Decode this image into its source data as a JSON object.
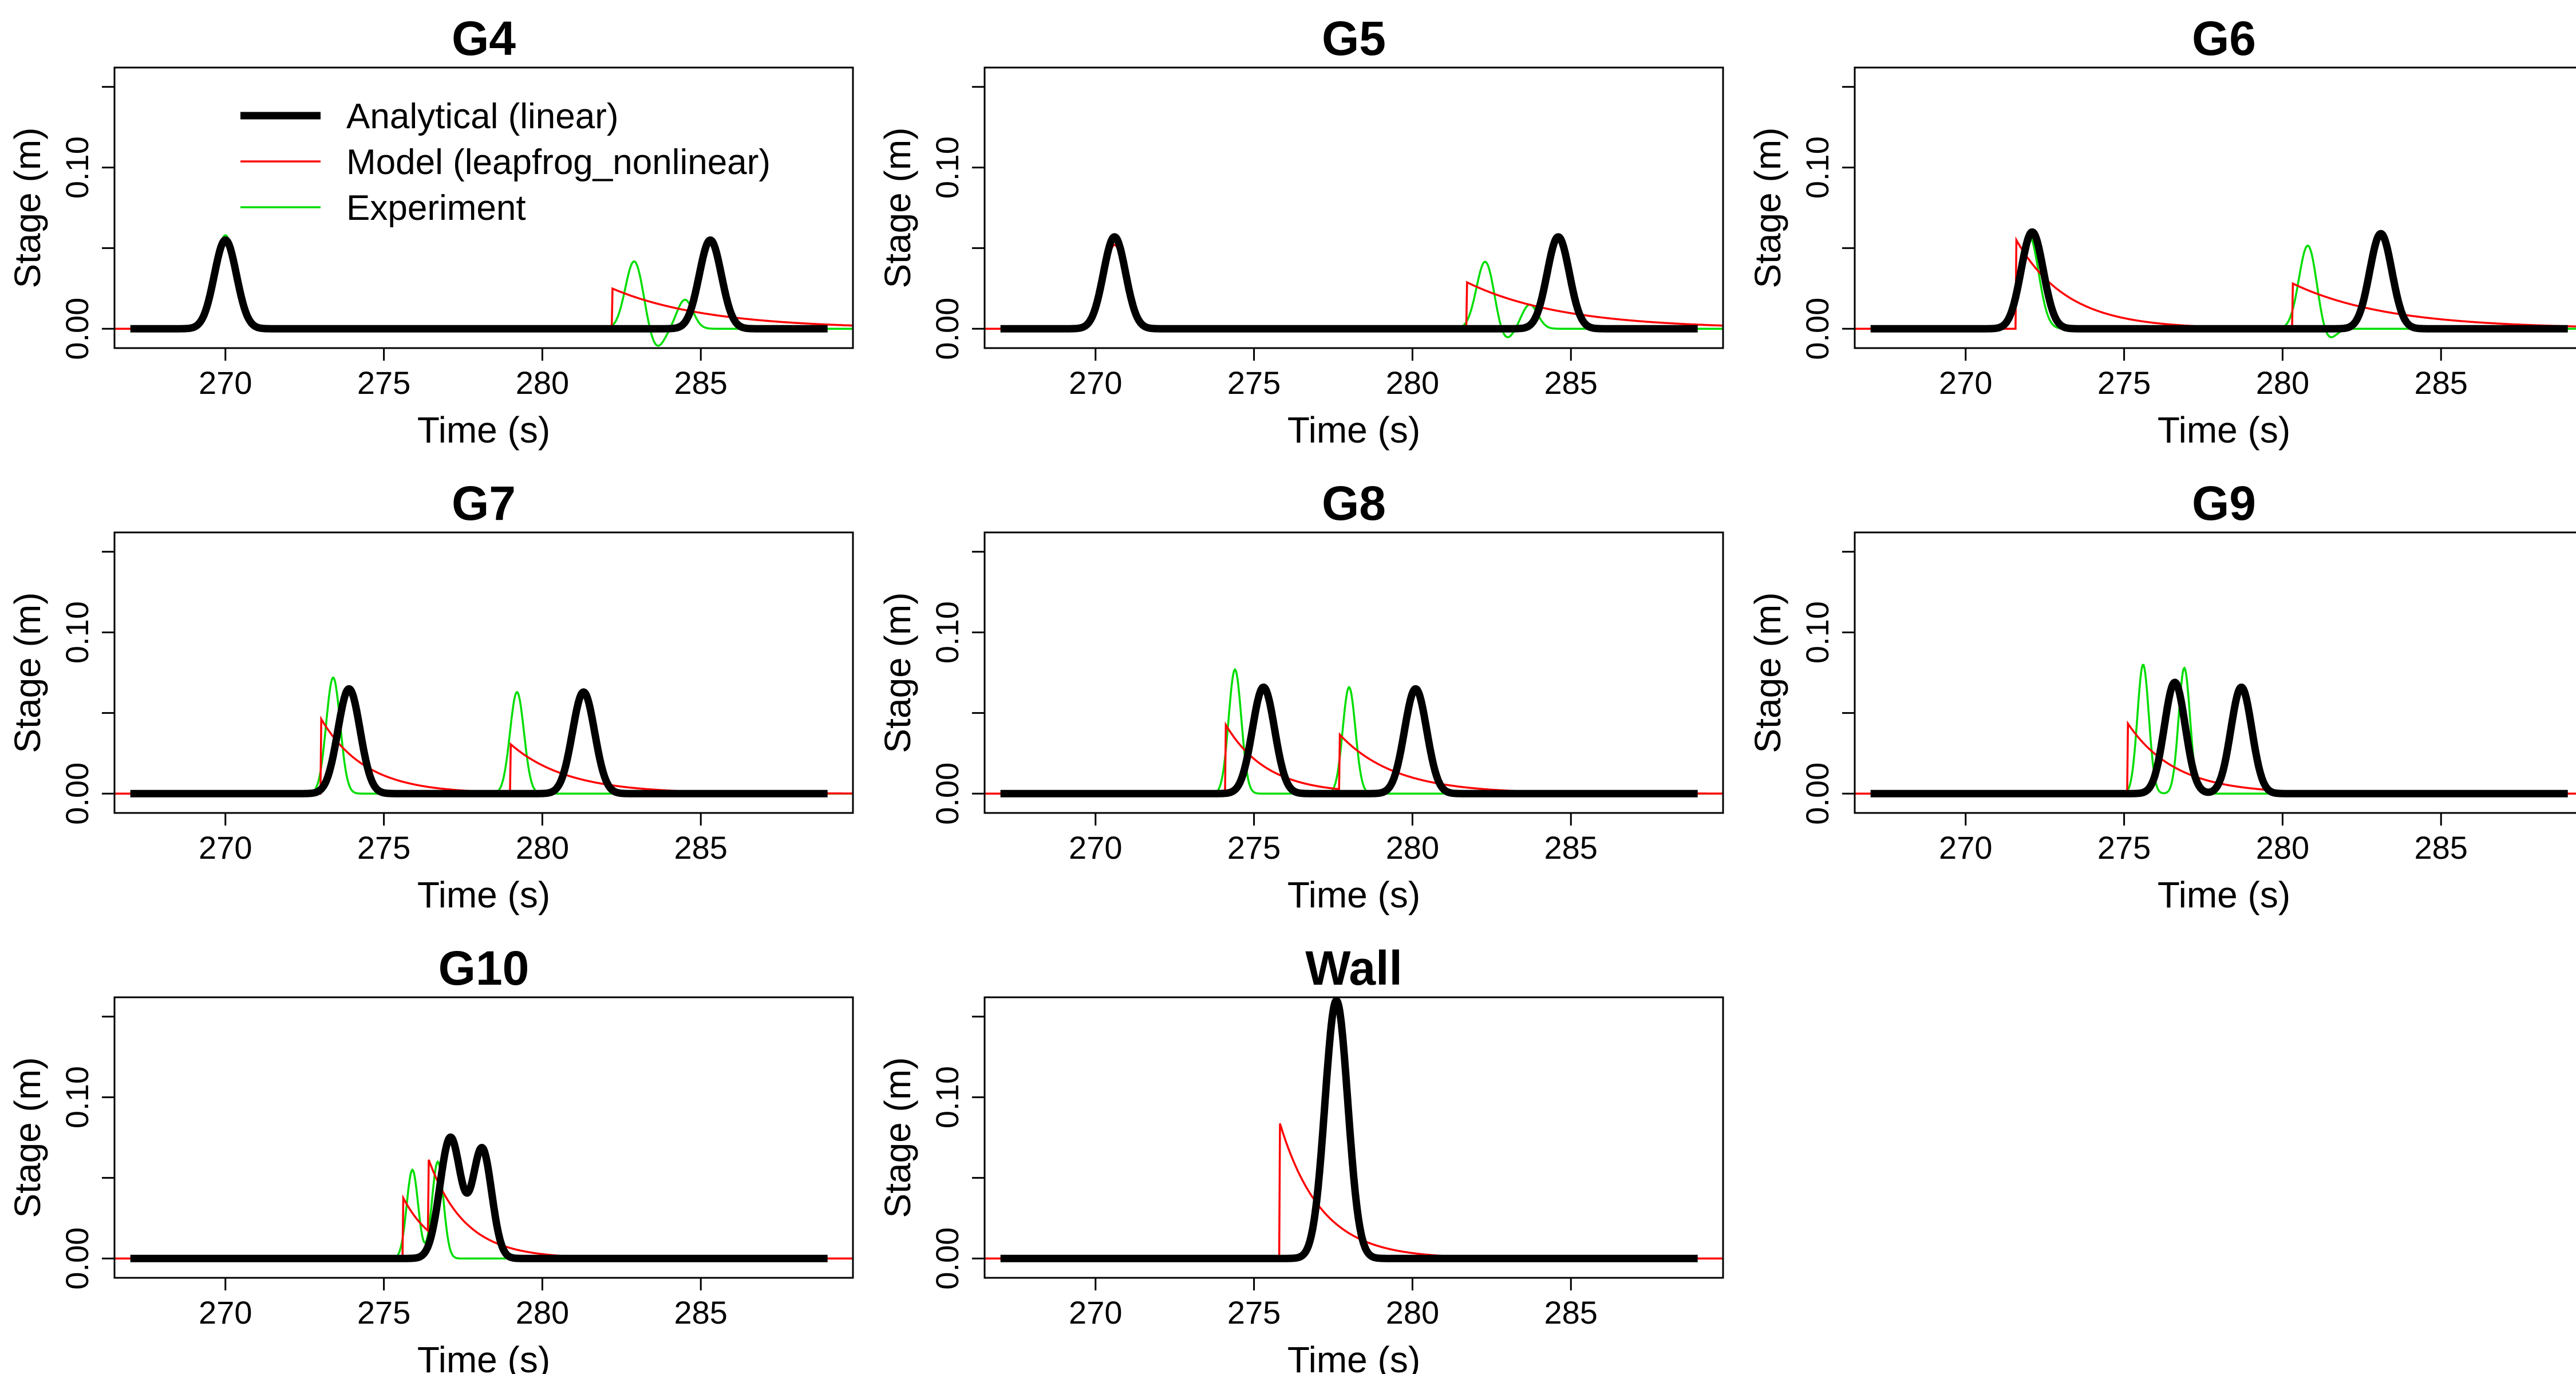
{
  "chart_data": {
    "type": "line",
    "layout": {
      "rows": 3,
      "cols": 3
    },
    "legend": {
      "placement": "top-left",
      "entries": [
        {
          "label": "Analytical (linear)",
          "color": "#000000"
        },
        {
          "label": "Model (leapfrog_nonlinear)",
          "color": "#ff0000"
        },
        {
          "label": "Experiment",
          "color": "#00dd00"
        }
      ]
    },
    "series_colors": {
      "analytical": "#000000",
      "model": "#ff0000",
      "experiment": "#00dd00"
    },
    "xlabel": "Time (s)",
    "ylabel": "Stage (m)",
    "xlim": [
      266.5,
      289.8
    ],
    "ylim": [
      -0.012,
      0.162
    ],
    "xticks": [
      "270",
      "275",
      "280",
      "285"
    ],
    "yticks": [
      "0.00",
      "0.10"
    ],
    "grid": false,
    "panels": [
      {
        "title": "G4",
        "analytical_peaks": [
          {
            "t": 270.0,
            "h": 0.055,
            "w": 0.35
          },
          {
            "t": 285.3,
            "h": 0.055,
            "w": 0.35
          }
        ],
        "model_peaks": [
          {
            "t": 270.0,
            "h": 0.052,
            "w": 0.32
          }
        ],
        "model_bores": [
          {
            "t": 282.2,
            "h": 0.025,
            "tau": 3.0
          }
        ],
        "experiment_peaks": [
          {
            "t": 270.0,
            "h": 0.058,
            "w": 0.32
          },
          {
            "t": 282.9,
            "h": 0.042,
            "w": 0.28
          },
          {
            "t": 284.5,
            "h": 0.018,
            "w": 0.25
          }
        ],
        "experiment_dips": [
          {
            "t": 283.6,
            "h": -0.012,
            "w": 0.25
          }
        ]
      },
      {
        "title": "G5",
        "analytical_peaks": [
          {
            "t": 270.6,
            "h": 0.057,
            "w": 0.35
          },
          {
            "t": 284.6,
            "h": 0.057,
            "w": 0.35
          }
        ],
        "model_peaks": [
          {
            "t": 270.6,
            "h": 0.052,
            "w": 0.32
          }
        ],
        "model_bores": [
          {
            "t": 281.7,
            "h": 0.029,
            "tau": 3.0
          }
        ],
        "experiment_peaks": [
          {
            "t": 270.6,
            "h": 0.058,
            "w": 0.32
          },
          {
            "t": 282.3,
            "h": 0.042,
            "w": 0.28
          },
          {
            "t": 283.7,
            "h": 0.015,
            "w": 0.25
          }
        ],
        "experiment_dips": [
          {
            "t": 282.9,
            "h": -0.008,
            "w": 0.25
          }
        ]
      },
      {
        "title": "G6",
        "analytical_peaks": [
          {
            "t": 272.1,
            "h": 0.06,
            "w": 0.35
          },
          {
            "t": 283.1,
            "h": 0.059,
            "w": 0.35
          }
        ],
        "model_bores": [
          {
            "t": 271.6,
            "h": 0.055,
            "tau": 1.6
          },
          {
            "t": 280.3,
            "h": 0.028,
            "tau": 3.0
          }
        ],
        "experiment_peaks": [
          {
            "t": 272.0,
            "h": 0.058,
            "w": 0.3
          },
          {
            "t": 280.8,
            "h": 0.052,
            "w": 0.28
          }
        ],
        "experiment_dips": [
          {
            "t": 281.4,
            "h": -0.008,
            "w": 0.25
          }
        ]
      },
      {
        "title": "G7",
        "analytical_peaks": [
          {
            "t": 273.9,
            "h": 0.065,
            "w": 0.35
          },
          {
            "t": 281.3,
            "h": 0.063,
            "w": 0.35
          }
        ],
        "model_bores": [
          {
            "t": 273.0,
            "h": 0.047,
            "tau": 1.4
          },
          {
            "t": 279.0,
            "h": 0.03,
            "tau": 1.8
          }
        ],
        "experiment_peaks": [
          {
            "t": 273.4,
            "h": 0.072,
            "w": 0.22
          },
          {
            "t": 279.2,
            "h": 0.063,
            "w": 0.22
          }
        ],
        "experiment_dips": []
      },
      {
        "title": "G8",
        "analytical_peaks": [
          {
            "t": 275.3,
            "h": 0.066,
            "w": 0.35
          },
          {
            "t": 280.1,
            "h": 0.065,
            "w": 0.35
          }
        ],
        "model_bores": [
          {
            "t": 274.1,
            "h": 0.043,
            "tau": 1.3
          },
          {
            "t": 277.7,
            "h": 0.034,
            "tau": 1.8
          }
        ],
        "experiment_peaks": [
          {
            "t": 274.4,
            "h": 0.077,
            "w": 0.2
          },
          {
            "t": 278.0,
            "h": 0.066,
            "w": 0.2
          }
        ],
        "experiment_dips": []
      },
      {
        "title": "G9",
        "analytical_peaks": [
          {
            "t": 276.6,
            "h": 0.069,
            "w": 0.33
          },
          {
            "t": 278.7,
            "h": 0.066,
            "w": 0.33
          }
        ],
        "model_bores": [
          {
            "t": 275.1,
            "h": 0.044,
            "tau": 1.5
          }
        ],
        "experiment_peaks": [
          {
            "t": 275.6,
            "h": 0.08,
            "w": 0.18
          },
          {
            "t": 276.9,
            "h": 0.078,
            "w": 0.18
          }
        ],
        "experiment_dips": []
      },
      {
        "title": "G10",
        "analytical_peaks": [
          {
            "t": 277.1,
            "h": 0.075,
            "w": 0.33
          },
          {
            "t": 278.1,
            "h": 0.068,
            "w": 0.3
          }
        ],
        "model_bores": [
          {
            "t": 275.6,
            "h": 0.038,
            "tau": 1.0
          },
          {
            "t": 276.4,
            "h": 0.045,
            "tau": 1.2
          }
        ],
        "experiment_peaks": [
          {
            "t": 275.9,
            "h": 0.055,
            "w": 0.18
          },
          {
            "t": 276.7,
            "h": 0.06,
            "w": 0.18
          }
        ],
        "experiment_dips": []
      },
      {
        "title": "Wall",
        "analytical_peaks": [
          {
            "t": 277.6,
            "h": 0.16,
            "w": 0.36
          }
        ],
        "model_bores": [
          {
            "t": 275.8,
            "h": 0.085,
            "tau": 1.3
          }
        ],
        "experiment_peaks": [],
        "experiment_dips": []
      }
    ]
  }
}
